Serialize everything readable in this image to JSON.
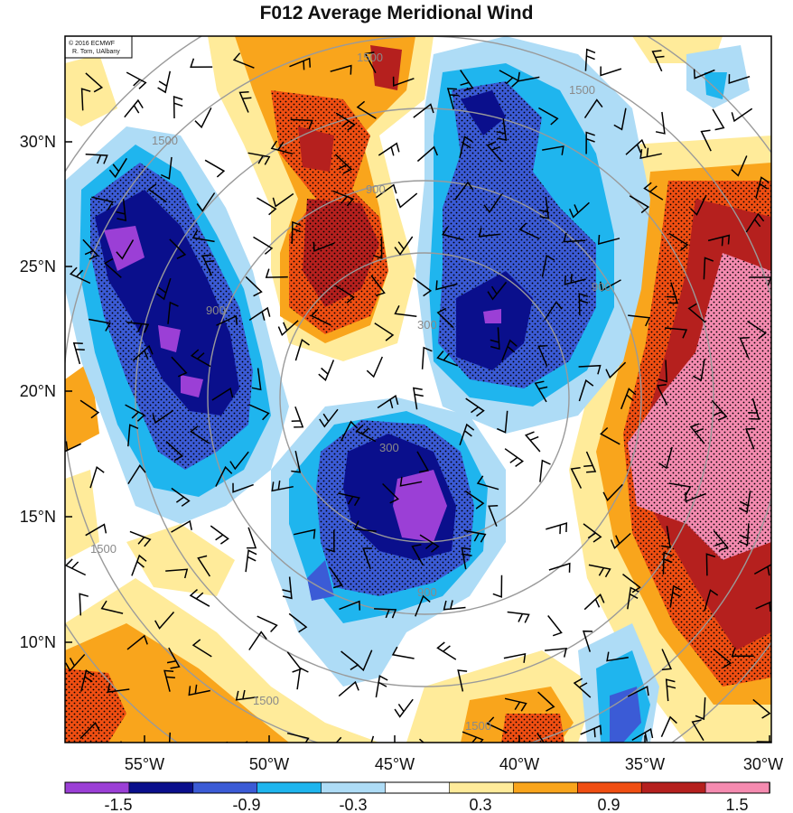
{
  "title": "F012 Average Meridional Wind",
  "credit": {
    "line1": "© 2016 ECMWF",
    "line2": "R. Torn, UAlbany"
  },
  "lat_labels": [
    "30°N",
    "25°N",
    "20°N",
    "15°N",
    "10°N"
  ],
  "lon_labels": [
    "55°W",
    "50°W",
    "45°W",
    "40°W",
    "35°W",
    "30°W"
  ],
  "colorbar": {
    "colors": [
      "#9b3fd6",
      "#0a0f8c",
      "#3b5bd6",
      "#1fb5ee",
      "#aedcf6",
      "#ffffff",
      "#ffeb9a",
      "#f9a51c",
      "#f04e12",
      "#b5201e",
      "#f58bb0"
    ],
    "labels": [
      "-1.5",
      "-0.9",
      "-0.3",
      "0.3",
      "0.9",
      "1.5"
    ]
  },
  "contour_labels": [
    "300",
    "300",
    "900",
    "900",
    "900",
    "900",
    "1500",
    "1500",
    "1500",
    "1500",
    "1500",
    "1500"
  ]
}
